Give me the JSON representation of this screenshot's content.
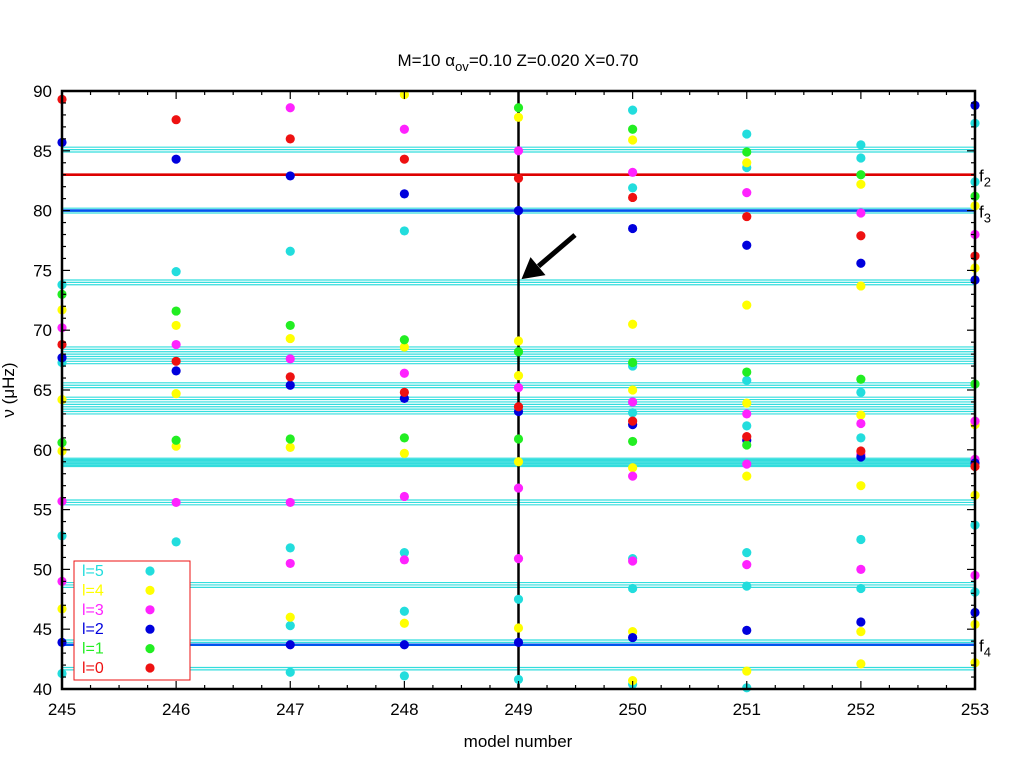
{
  "chart_data": {
    "type": "scatter",
    "title": "M=10  αov=0.10  Z=0.020   X=0.70",
    "title_parts": {
      "prefix": "M=10  α",
      "subscript": "ov",
      "suffix": "=0.10  Z=0.020   X=0.70"
    },
    "xlabel": "model number",
    "ylabel": "ν (μHz)",
    "xlim": [
      245,
      253
    ],
    "ylim": [
      40,
      90
    ],
    "x_ticks": [
      245,
      246,
      247,
      248,
      249,
      250,
      251,
      252,
      253
    ],
    "y_ticks": [
      40,
      45,
      50,
      55,
      60,
      65,
      70,
      75,
      80,
      85,
      90
    ],
    "legend_position": "bottom-left",
    "series": [
      {
        "name": "l=5",
        "color": "#22dddd",
        "points": [
          [
            245,
            73.8
          ],
          [
            245,
            67.3
          ],
          [
            245,
            52.8
          ],
          [
            245,
            41.3
          ],
          [
            246,
            74.9
          ],
          [
            246,
            52.3
          ],
          [
            246,
            44.4
          ],
          [
            246,
            41.6
          ],
          [
            247,
            76.6
          ],
          [
            247,
            51.8
          ],
          [
            247,
            45.3
          ],
          [
            247,
            41.4
          ],
          [
            248,
            78.3
          ],
          [
            248,
            51.4
          ],
          [
            248,
            46.5
          ],
          [
            248,
            41.1
          ],
          [
            249,
            47.5
          ],
          [
            249,
            40.8
          ],
          [
            250,
            88.4
          ],
          [
            250,
            81.9
          ],
          [
            250,
            67.0
          ],
          [
            250,
            64.0
          ],
          [
            250,
            63.1
          ],
          [
            250,
            50.9
          ],
          [
            250,
            48.4
          ],
          [
            250,
            40.4
          ],
          [
            251,
            86.4
          ],
          [
            251,
            83.6
          ],
          [
            251,
            65.8
          ],
          [
            251,
            62.0
          ],
          [
            251,
            51.4
          ],
          [
            251,
            48.6
          ],
          [
            251,
            40.1
          ],
          [
            252,
            85.5
          ],
          [
            252,
            84.4
          ],
          [
            252,
            64.8
          ],
          [
            252,
            61.0
          ],
          [
            252,
            52.5
          ],
          [
            252,
            48.4
          ],
          [
            253,
            87.3
          ],
          [
            253,
            82.4
          ],
          [
            253,
            53.7
          ],
          [
            253,
            48.1
          ]
        ]
      },
      {
        "name": "l=4",
        "color": "#ffff00",
        "points": [
          [
            245,
            71.7
          ],
          [
            245,
            64.2
          ],
          [
            245,
            59.9
          ],
          [
            245,
            46.7
          ],
          [
            246,
            70.4
          ],
          [
            246,
            64.7
          ],
          [
            246,
            60.3
          ],
          [
            246,
            46.3
          ],
          [
            247,
            69.3
          ],
          [
            247,
            60.2
          ],
          [
            247,
            46.0
          ],
          [
            248,
            89.7
          ],
          [
            248,
            68.6
          ],
          [
            248,
            59.7
          ],
          [
            248,
            45.5
          ],
          [
            249,
            87.8
          ],
          [
            249,
            69.1
          ],
          [
            249,
            66.2
          ],
          [
            249,
            59.0
          ],
          [
            249,
            45.1
          ],
          [
            250,
            85.9
          ],
          [
            250,
            70.5
          ],
          [
            250,
            65.0
          ],
          [
            250,
            58.5
          ],
          [
            250,
            44.8
          ],
          [
            250,
            40.7
          ],
          [
            251,
            84.0
          ],
          [
            251,
            72.1
          ],
          [
            251,
            63.9
          ],
          [
            251,
            57.8
          ],
          [
            251,
            41.5
          ],
          [
            252,
            82.2
          ],
          [
            252,
            73.7
          ],
          [
            252,
            62.9
          ],
          [
            252,
            57.0
          ],
          [
            252,
            44.8
          ],
          [
            252,
            42.1
          ],
          [
            253,
            80.4
          ],
          [
            253,
            75.2
          ],
          [
            253,
            62.1
          ],
          [
            253,
            56.2
          ],
          [
            253,
            45.4
          ],
          [
            253,
            42.2
          ]
        ]
      },
      {
        "name": "l=3",
        "color": "#ff22ff",
        "points": [
          [
            245,
            70.2
          ],
          [
            245,
            55.7
          ],
          [
            245,
            49.0
          ],
          [
            246,
            68.8
          ],
          [
            246,
            55.6
          ],
          [
            246,
            49.9
          ],
          [
            247,
            88.6
          ],
          [
            247,
            67.6
          ],
          [
            247,
            55.6
          ],
          [
            247,
            50.5
          ],
          [
            248,
            86.8
          ],
          [
            248,
            66.4
          ],
          [
            248,
            56.1
          ],
          [
            248,
            50.8
          ],
          [
            249,
            85.0
          ],
          [
            249,
            65.2
          ],
          [
            249,
            56.8
          ],
          [
            249,
            50.9
          ],
          [
            250,
            83.2
          ],
          [
            250,
            64.0
          ],
          [
            250,
            57.8
          ],
          [
            250,
            50.7
          ],
          [
            251,
            81.5
          ],
          [
            251,
            63.0
          ],
          [
            251,
            58.8
          ],
          [
            251,
            50.4
          ],
          [
            252,
            79.8
          ],
          [
            252,
            62.2
          ],
          [
            252,
            59.6
          ],
          [
            252,
            50.0
          ],
          [
            253,
            78.0
          ],
          [
            253,
            62.4
          ],
          [
            253,
            59.2
          ],
          [
            253,
            49.5
          ]
        ]
      },
      {
        "name": "l=2",
        "color": "#0000dd",
        "points": [
          [
            245,
            85.7
          ],
          [
            245,
            67.7
          ],
          [
            245,
            43.9
          ],
          [
            246,
            84.3
          ],
          [
            246,
            66.6
          ],
          [
            246,
            43.8
          ],
          [
            247,
            82.9
          ],
          [
            247,
            65.4
          ],
          [
            247,
            43.7
          ],
          [
            248,
            81.4
          ],
          [
            248,
            64.3
          ],
          [
            248,
            43.7
          ],
          [
            249,
            80.0
          ],
          [
            249,
            63.2
          ],
          [
            249,
            43.9
          ],
          [
            250,
            78.5
          ],
          [
            250,
            62.1
          ],
          [
            250,
            44.3
          ],
          [
            251,
            77.1
          ],
          [
            251,
            60.8
          ],
          [
            251,
            44.9
          ],
          [
            252,
            75.6
          ],
          [
            252,
            59.4
          ],
          [
            252,
            45.6
          ],
          [
            253,
            88.8
          ],
          [
            253,
            74.2
          ],
          [
            253,
            58.9
          ],
          [
            253,
            46.4
          ]
        ]
      },
      {
        "name": "l=1",
        "color": "#22ee22",
        "points": [
          [
            245,
            73.0
          ],
          [
            245,
            60.6
          ],
          [
            246,
            71.6
          ],
          [
            246,
            60.8
          ],
          [
            246,
            43.2
          ],
          [
            247,
            70.4
          ],
          [
            247,
            60.9
          ],
          [
            248,
            69.2
          ],
          [
            248,
            61.0
          ],
          [
            249,
            88.6
          ],
          [
            249,
            68.2
          ],
          [
            249,
            60.9
          ],
          [
            250,
            86.8
          ],
          [
            250,
            67.3
          ],
          [
            250,
            60.7
          ],
          [
            251,
            84.9
          ],
          [
            251,
            66.5
          ],
          [
            251,
            60.4
          ],
          [
            252,
            83.0
          ],
          [
            252,
            65.9
          ],
          [
            253,
            81.2
          ],
          [
            253,
            65.5
          ]
        ]
      },
      {
        "name": "l=0",
        "color": "#ee1111",
        "points": [
          [
            245,
            89.3
          ],
          [
            245,
            68.8
          ],
          [
            246,
            87.6
          ],
          [
            246,
            67.4
          ],
          [
            247,
            86.0
          ],
          [
            247,
            66.1
          ],
          [
            248,
            84.3
          ],
          [
            248,
            64.8
          ],
          [
            249,
            82.7
          ],
          [
            249,
            63.6
          ],
          [
            250,
            81.1
          ],
          [
            250,
            62.4
          ],
          [
            251,
            79.5
          ],
          [
            251,
            61.1
          ],
          [
            252,
            77.9
          ],
          [
            252,
            59.9
          ],
          [
            253,
            76.2
          ],
          [
            253,
            58.6
          ]
        ]
      }
    ],
    "observed_frequencies": {
      "color": "#33dddd",
      "values": [
        41.6,
        41.8,
        43.7,
        43.9,
        44.1,
        48.5,
        48.7,
        48.9,
        55.4,
        55.6,
        55.8,
        58.6,
        58.7,
        58.8,
        58.9,
        59.0,
        59.1,
        59.2,
        59.3,
        63.0,
        63.2,
        63.4,
        63.6,
        63.8,
        64.0,
        64.2,
        64.4,
        65.2,
        65.4,
        65.6,
        67.2,
        67.4,
        67.6,
        67.8,
        68.0,
        68.2,
        68.4,
        68.6,
        73.8,
        74.0,
        74.2,
        79.8,
        80.0,
        80.2,
        84.9,
        85.1,
        85.3
      ]
    },
    "identified_frequencies": [
      {
        "label": "f",
        "subscript": "2",
        "value": 83.0,
        "color": "#dd0000"
      },
      {
        "label": "f",
        "subscript": "3",
        "value": 80.0,
        "color": "#0055ee"
      },
      {
        "label": "f",
        "subscript": "4",
        "value": 43.7,
        "color": "#0055ee"
      }
    ],
    "marked_model": 249,
    "arrow_target": {
      "x": 249,
      "y": 74.1
    }
  }
}
